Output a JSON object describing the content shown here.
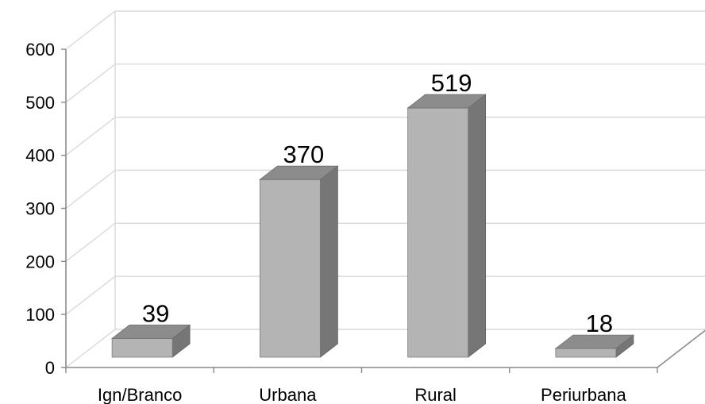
{
  "chart_data": {
    "type": "bar",
    "categories": [
      "Ign/Branco",
      "Urbana",
      "Rural",
      "Periurbana"
    ],
    "values": [
      39,
      370,
      519,
      18
    ],
    "data_labels": [
      "39",
      "370",
      "519",
      "18"
    ],
    "title": "",
    "xlabel": "",
    "ylabel": "",
    "ylim": [
      0,
      600
    ],
    "yticks": [
      "0",
      "100",
      "200",
      "300",
      "400",
      "500",
      "600"
    ],
    "grid": true,
    "legend": "none",
    "colors": {
      "bar_front": "#b4b4b4",
      "bar_top": "#8c8c8c",
      "bar_side": "#767676",
      "grid": "#d9d9d9",
      "axis": "#8a8a8a"
    }
  }
}
